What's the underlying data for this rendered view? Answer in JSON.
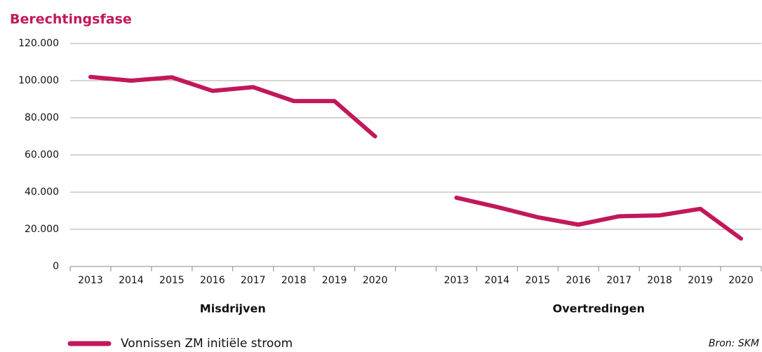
{
  "chart_data": {
    "type": "line",
    "title": "Berechtingsfase",
    "categories": [
      "2013",
      "2014",
      "2015",
      "2016",
      "2017",
      "2018",
      "2019",
      "2020",
      null,
      "2013",
      "2014",
      "2015",
      "2016",
      "2017",
      "2018",
      "2019",
      "2020"
    ],
    "groups": [
      "Misdrijven",
      "Overtredingen"
    ],
    "series": [
      {
        "name": "Vonnissen ZM initiële stroom",
        "color": "#c2185b",
        "values": [
          102000,
          100000,
          101800,
          94500,
          96500,
          89000,
          89000,
          70000,
          null,
          37000,
          32000,
          26500,
          22500,
          27000,
          27500,
          31000,
          15000
        ]
      }
    ],
    "ylim": [
      0,
      120000
    ],
    "yticks": [
      0,
      {
        "value": 20000,
        "label": "20.000"
      },
      {
        "value": 40000,
        "label": "40.000"
      },
      {
        "value": 60000,
        "label": "60.000"
      },
      {
        "value": 80000,
        "label": "80.000"
      },
      {
        "value": 100000,
        "label": "100.000"
      },
      {
        "value": 120000,
        "label": "120.000"
      }
    ],
    "grid": true,
    "source": "Bron: SKM"
  }
}
